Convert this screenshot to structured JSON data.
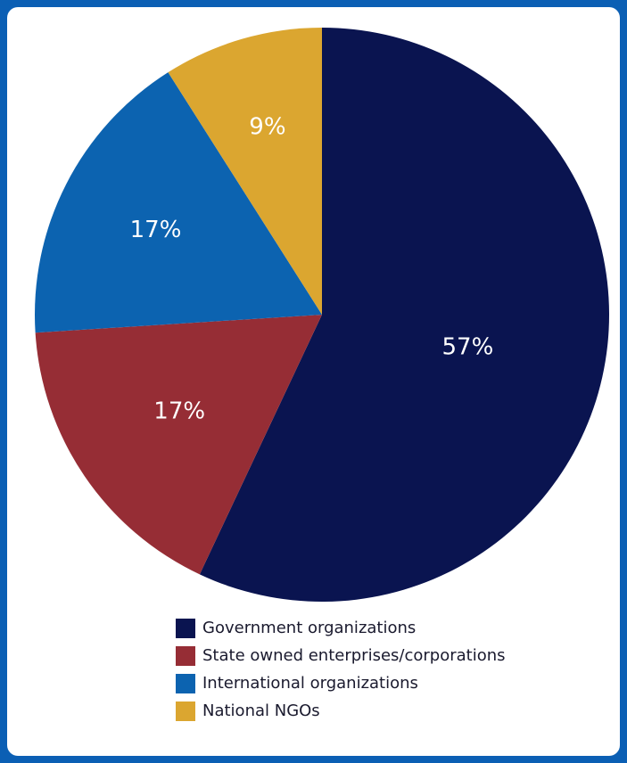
{
  "chart_data": {
    "type": "pie",
    "slices": [
      {
        "label": "Government organizations",
        "value": 57,
        "display": "57%",
        "color": "#0a1450"
      },
      {
        "label": "State owned enterprises/corporations",
        "value": 17,
        "display": "17%",
        "color": "#962d35"
      },
      {
        "label": "International organizations",
        "value": 17,
        "display": "17%",
        "color": "#0c63b0"
      },
      {
        "label": "National NGOs",
        "value": 9,
        "display": "9%",
        "color": "#dba630"
      }
    ],
    "legend_position": "bottom"
  }
}
